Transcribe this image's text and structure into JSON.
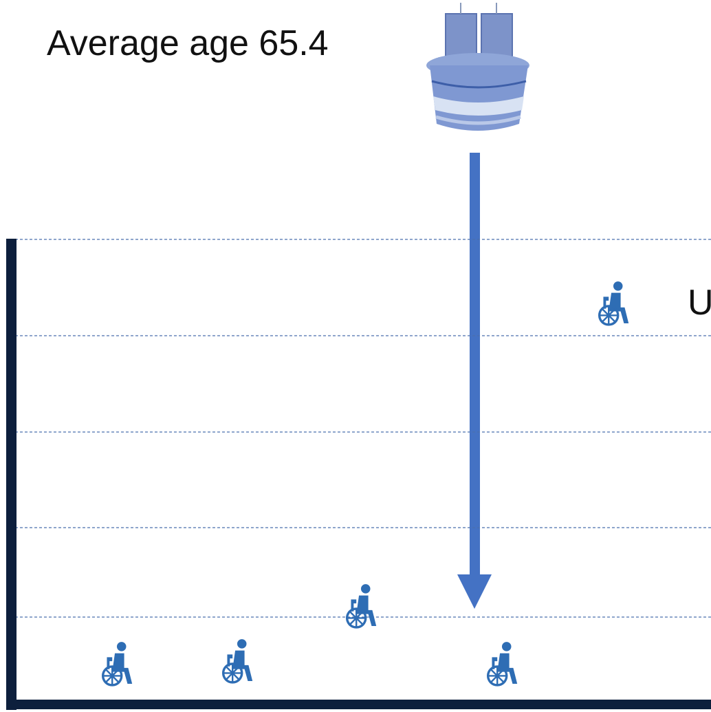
{
  "heading": "Average age 65.4",
  "side_label": "U"
}
